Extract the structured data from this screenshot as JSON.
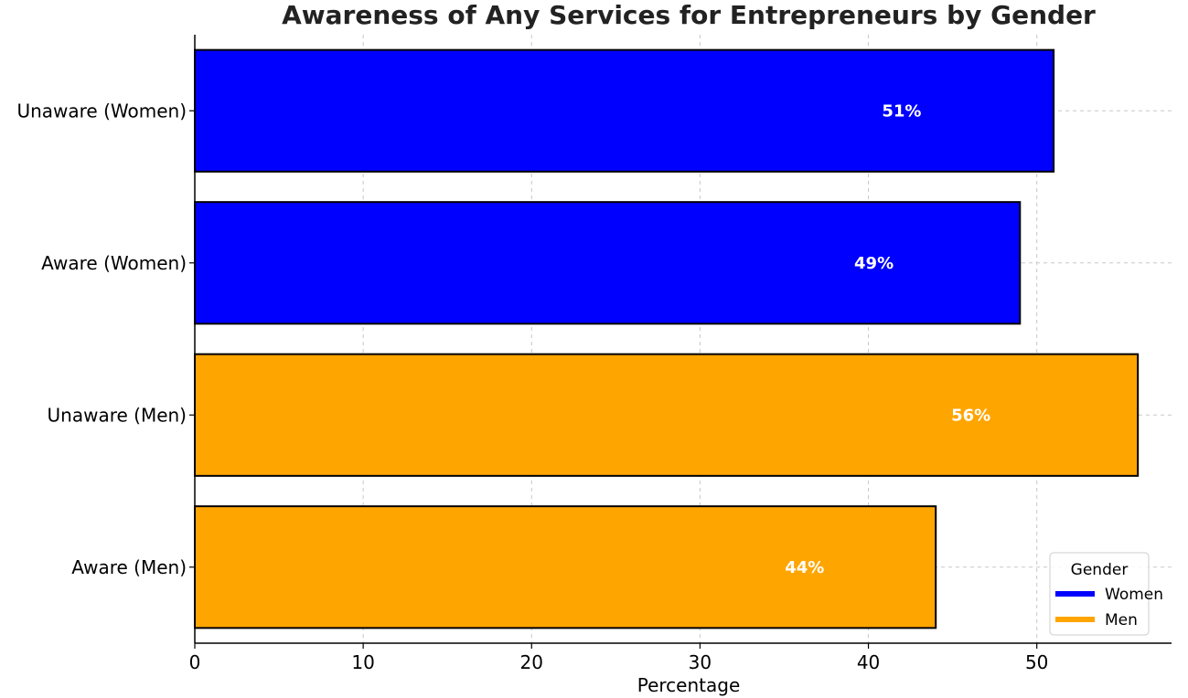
{
  "chart_data": {
    "type": "bar",
    "orientation": "horizontal",
    "title": "Awareness of Any Services for Entrepreneurs by Gender",
    "xlabel": "Percentage",
    "ylabel": "",
    "xlim": [
      0,
      58
    ],
    "x_ticks": [
      0,
      10,
      20,
      30,
      40,
      50
    ],
    "grid": true,
    "categories": [
      "Unaware (Women)",
      "Aware (Women)",
      "Unaware (Men)",
      "Aware (Men)"
    ],
    "values": [
      51,
      49,
      56,
      44
    ],
    "data_labels": [
      "51%",
      "49%",
      "56%",
      "44%"
    ],
    "bar_groups": [
      "Women",
      "Women",
      "Men",
      "Men"
    ],
    "legend": {
      "title": "Gender",
      "placement": "lower-right",
      "entries": [
        {
          "name": "Women",
          "color": "#0000ff"
        },
        {
          "name": "Men",
          "color": "#ffa500"
        }
      ]
    }
  }
}
